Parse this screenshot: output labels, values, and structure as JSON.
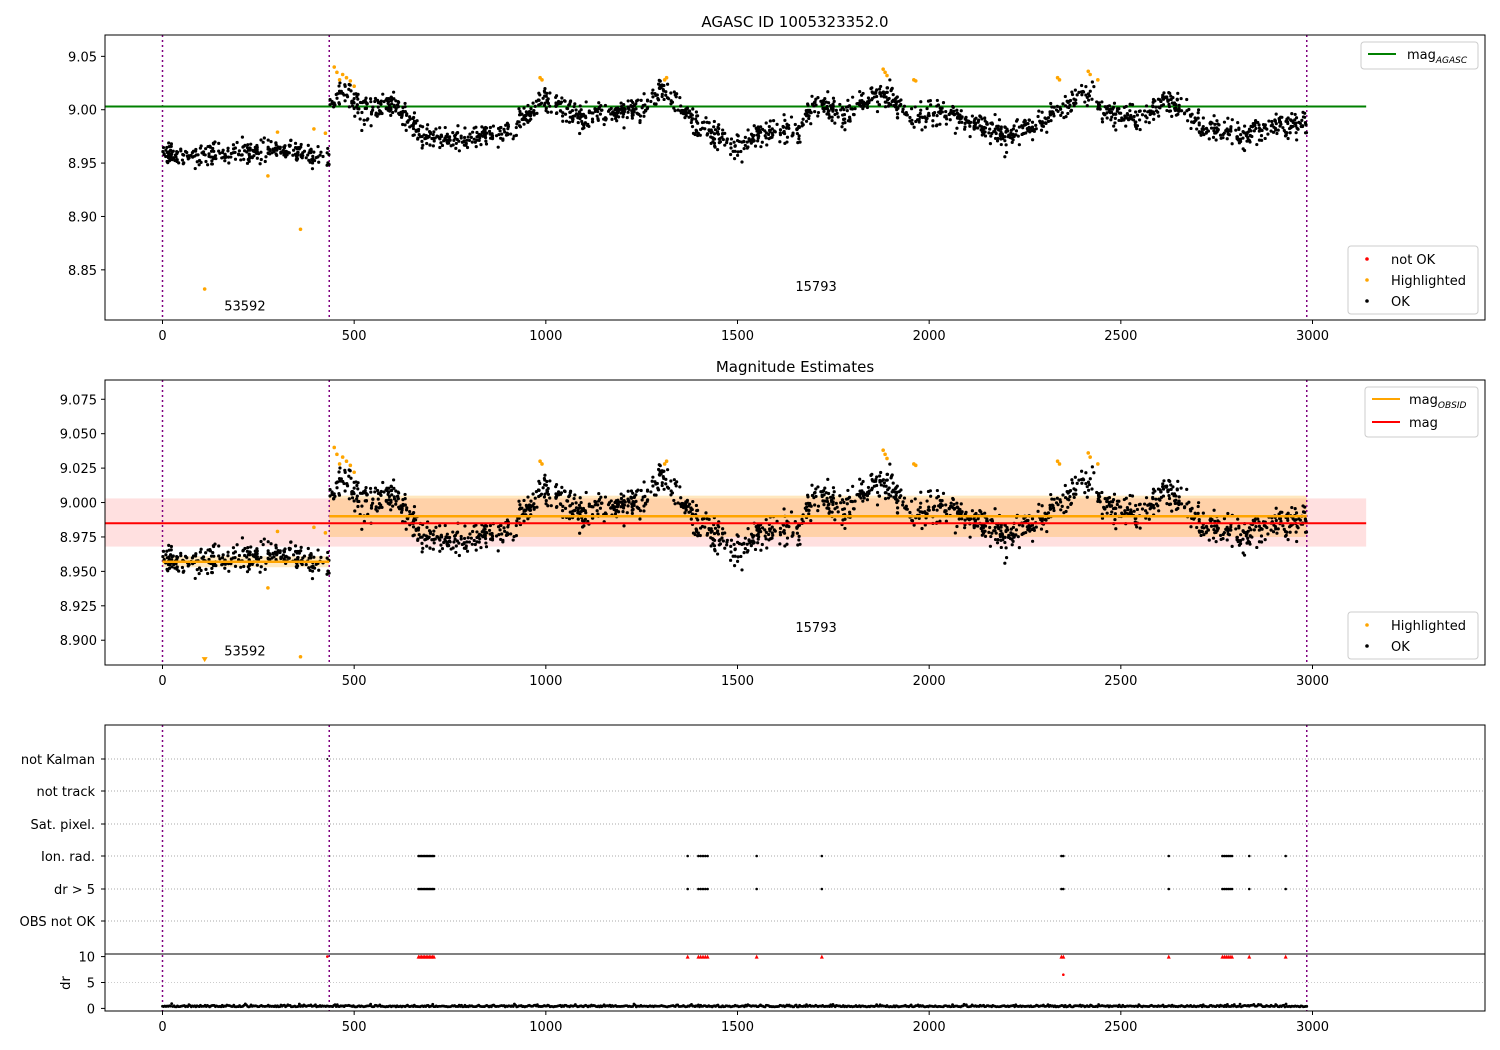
{
  "chart_data": [
    {
      "type": "scatter",
      "title": "AGASC ID 1005323352.0",
      "xlabel": "",
      "ylabel": "",
      "xlim": [
        -150,
        3450
      ],
      "ylim": [
        8.803,
        9.07
      ],
      "xticks": [
        0,
        500,
        1000,
        1500,
        2000,
        2500,
        3000
      ],
      "yticks": [
        8.85,
        8.9,
        8.95,
        9.0,
        9.05
      ],
      "ytick_labels": [
        "8.85",
        "8.90",
        "8.95",
        "9.00",
        "9.05"
      ],
      "obs_boundaries": [
        0,
        435,
        2985
      ],
      "obsid_labels": [
        {
          "text": "53592",
          "x": 215,
          "y": 8.812
        },
        {
          "text": "15793",
          "x": 1705,
          "y": 8.83
        }
      ],
      "legend_top": {
        "position": "top-right",
        "entries": [
          {
            "label": "mag",
            "subscript": "AGASC",
            "color": "#008000"
          }
        ]
      },
      "legend_bottom": {
        "position": "bottom-right",
        "entries": [
          {
            "label": "not OK",
            "color": "#ff0000"
          },
          {
            "label": "Highlighted",
            "color": "#ffa500"
          },
          {
            "label": "OK",
            "color": "#000000"
          }
        ]
      },
      "mag_agasc": 9.003,
      "series": [
        {
          "name": "OK",
          "color": "#000000",
          "segments": [
            {
              "x0": 0,
              "x1": 435,
              "base": [
                [
                  0,
                  8.957
                ],
                [
                  150,
                  8.958
                ],
                [
                  300,
                  8.962
                ],
                [
                  435,
                  8.957
                ]
              ],
              "spread": 0.012,
              "n": 280
            },
            {
              "x0": 435,
              "x1": 2985,
              "base": [
                [
                  435,
                  9.005
                ],
                [
                  470,
                  9.02
                ],
                [
                  520,
                  9.0
                ],
                [
                  600,
                  9.005
                ],
                [
                  680,
                  8.975
                ],
                [
                  800,
                  8.972
                ],
                [
                  920,
                  8.985
                ],
                [
                  990,
                  9.01
                ],
                [
                  1100,
                  8.99
                ],
                [
                  1250,
                  9.0
                ],
                [
                  1300,
                  9.02
                ],
                [
                  1400,
                  8.985
                ],
                [
                  1490,
                  8.965
                ],
                [
                  1580,
                  8.98
                ],
                [
                  1660,
                  8.98
                ],
                [
                  1700,
                  9.008
                ],
                [
                  1780,
                  8.995
                ],
                [
                  1880,
                  9.015
                ],
                [
                  1960,
                  8.99
                ],
                [
                  2050,
                  8.998
                ],
                [
                  2150,
                  8.982
                ],
                [
                  2200,
                  8.975
                ],
                [
                  2300,
                  8.99
                ],
                [
                  2350,
                  9.0
                ],
                [
                  2420,
                  9.02
                ],
                [
                  2450,
                  9.0
                ],
                [
                  2550,
                  8.99
                ],
                [
                  2620,
                  9.01
                ],
                [
                  2700,
                  8.985
                ],
                [
                  2800,
                  8.975
                ],
                [
                  2900,
                  8.985
                ],
                [
                  2985,
                  8.985
                ]
              ],
              "spread": 0.013,
              "n": 1750
            }
          ]
        },
        {
          "name": "Highlighted",
          "color": "#ffa500",
          "points": [
            [
              110,
              8.832
            ],
            [
              275,
              8.938
            ],
            [
              300,
              8.979
            ],
            [
              360,
              8.888
            ],
            [
              395,
              8.982
            ],
            [
              425,
              8.978
            ],
            [
              448,
              9.04
            ],
            [
              455,
              9.035
            ],
            [
              462,
              9.028
            ],
            [
              470,
              9.033
            ],
            [
              480,
              9.03
            ],
            [
              490,
              9.027
            ],
            [
              500,
              9.022
            ],
            [
              985,
              9.03
            ],
            [
              990,
              9.028
            ],
            [
              1310,
              9.028
            ],
            [
              1315,
              9.03
            ],
            [
              1880,
              9.038
            ],
            [
              1885,
              9.035
            ],
            [
              1890,
              9.032
            ],
            [
              1960,
              9.028
            ],
            [
              1965,
              9.027
            ],
            [
              2335,
              9.03
            ],
            [
              2340,
              9.028
            ],
            [
              2415,
              9.036
            ],
            [
              2420,
              9.033
            ],
            [
              2440,
              9.028
            ]
          ]
        }
      ]
    },
    {
      "type": "scatter",
      "title": "Magnitude Estimates",
      "xlabel": "",
      "ylabel": "",
      "xlim": [
        -150,
        3450
      ],
      "ylim": [
        8.882,
        9.089
      ],
      "xticks": [
        0,
        500,
        1000,
        1500,
        2000,
        2500,
        3000
      ],
      "yticks": [
        8.9,
        8.925,
        8.95,
        8.975,
        9.0,
        9.025,
        9.05,
        9.075
      ],
      "ytick_labels": [
        "8.900",
        "8.925",
        "8.950",
        "8.975",
        "9.000",
        "9.025",
        "9.050",
        "9.075"
      ],
      "obs_boundaries": [
        0,
        435,
        2985
      ],
      "obsid_labels": [
        {
          "text": "53592",
          "x": 215,
          "y": 8.889
        },
        {
          "text": "15793",
          "x": 1705,
          "y": 8.906
        }
      ],
      "legend_top": {
        "position": "top-right",
        "entries": [
          {
            "label": "mag",
            "subscript": "OBSID",
            "color": "#ffa500"
          },
          {
            "label": "mag",
            "color": "#ff0000"
          }
        ]
      },
      "legend_bottom": {
        "position": "bottom-right",
        "entries": [
          {
            "label": "Highlighted",
            "color": "#ffa500"
          },
          {
            "label": "OK",
            "color": "#000000"
          }
        ]
      },
      "mag_total": {
        "value": 8.985,
        "band": [
          8.968,
          9.003
        ],
        "x0": -150,
        "x1": 3140,
        "color": "#ff0000"
      },
      "mag_obsid": [
        {
          "x0": 0,
          "x1": 435,
          "value": 8.957,
          "band": [
            8.953,
            8.961
          ]
        },
        {
          "x0": 435,
          "x1": 2985,
          "value": 8.99,
          "band": [
            8.975,
            9.005
          ]
        }
      ]
    },
    {
      "type": "scatter",
      "title": "",
      "xlim": [
        -150,
        3450
      ],
      "xticks": [
        0,
        500,
        1000,
        1500,
        2000,
        2500,
        3000
      ],
      "obs_boundaries": [
        0,
        435,
        2985
      ],
      "flag_rows": [
        "not Kalman",
        "not track",
        "Sat. pixel.",
        "Ion. rad.",
        "dr > 5",
        "OBS not OK"
      ],
      "flagged_x": [
        668,
        672,
        676,
        680,
        684,
        688,
        692,
        696,
        700,
        704,
        708,
        1370,
        1398,
        1404,
        1410,
        1416,
        1422,
        1550,
        1720,
        2345,
        2350,
        2625,
        2765,
        2770,
        2775,
        2780,
        2785,
        2790,
        2835,
        2930
      ],
      "dr_panel": {
        "ylabel": "dr",
        "yticks": [
          0,
          5,
          10
        ],
        "ylim": [
          -0.5,
          10.5
        ],
        "baseline_level": 0.3,
        "flag_value": 10,
        "extra_points": [
          [
            2350,
            6.5
          ],
          [
            430,
            10
          ]
        ]
      }
    }
  ]
}
